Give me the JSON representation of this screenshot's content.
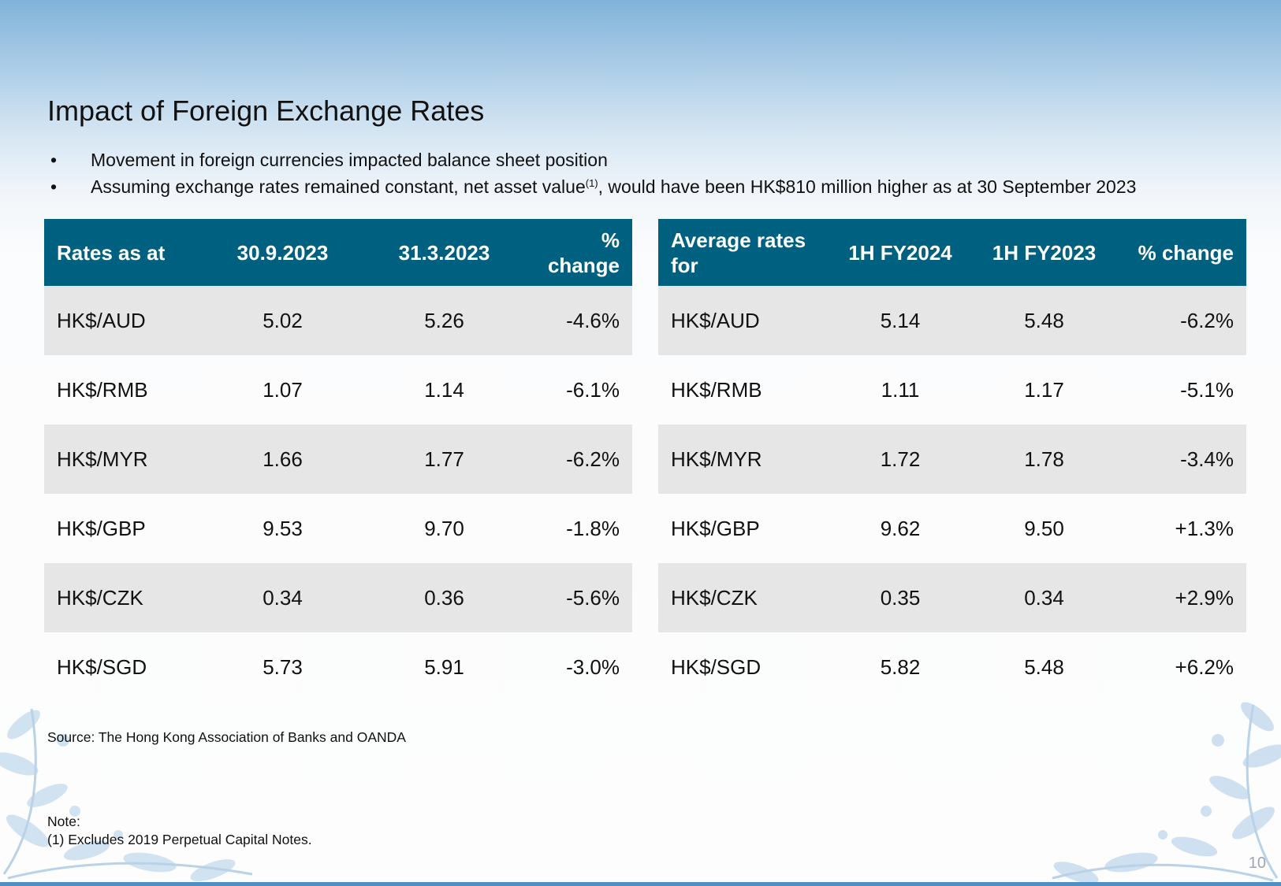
{
  "slide": {
    "title": "Impact of Foreign Exchange Rates",
    "bullets": [
      {
        "marker": "•",
        "text": "Movement in foreign currencies impacted balance sheet position"
      },
      {
        "marker": "•",
        "text_before": "Assuming exchange rates remained constant, net asset value",
        "superscript": "(1)",
        "text_after": ", would have been HK$810 million higher as at 30 September 2023"
      }
    ],
    "source": "Source: The Hong Kong Association of Banks and OANDA",
    "note_label": "Note:",
    "note_text": "(1) Excludes 2019 Perpetual Capital Notes.",
    "page_number": "10"
  },
  "left_table": {
    "headers": [
      "Rates as at",
      "30.9.2023",
      "31.3.2023",
      "% change"
    ],
    "rows": [
      [
        "HK$/AUD",
        "5.02",
        "5.26",
        "-4.6%"
      ],
      [
        "HK$/RMB",
        "1.07",
        "1.14",
        "-6.1%"
      ],
      [
        "HK$/MYR",
        "1.66",
        "1.77",
        "-6.2%"
      ],
      [
        "HK$/GBP",
        "9.53",
        "9.70",
        "-1.8%"
      ],
      [
        "HK$/CZK",
        "0.34",
        "0.36",
        "-5.6%"
      ],
      [
        "HK$/SGD",
        "5.73",
        "5.91",
        "-3.0%"
      ]
    ]
  },
  "right_table": {
    "headers": [
      "Average rates for",
      "1H FY2024",
      "1H FY2023",
      "% change"
    ],
    "rows": [
      [
        "HK$/AUD",
        "5.14",
        "5.48",
        "-6.2%"
      ],
      [
        "HK$/RMB",
        "1.11",
        "1.17",
        "-5.1%"
      ],
      [
        "HK$/MYR",
        "1.72",
        "1.78",
        "-3.4%"
      ],
      [
        "HK$/GBP",
        "9.62",
        "9.50",
        "+1.3%"
      ],
      [
        "HK$/CZK",
        "0.35",
        "0.34",
        "+2.9%"
      ],
      [
        "HK$/SGD",
        "5.82",
        "5.48",
        "+6.2%"
      ]
    ]
  },
  "colors": {
    "header_fill": "#006080",
    "stripe_fill": "#e6e6e6",
    "accent_bar": "#4f8fc4"
  }
}
